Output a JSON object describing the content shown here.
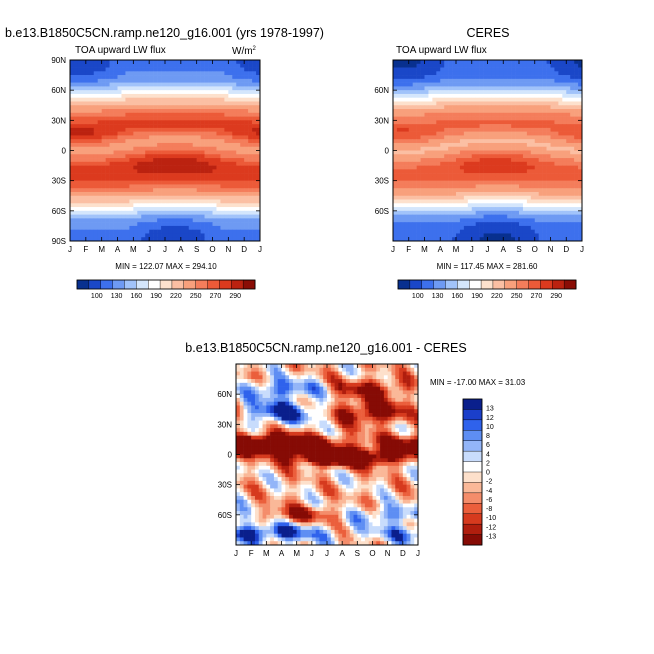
{
  "palette": {
    "main_colors": [
      "#08308f",
      "#1a47c8",
      "#3d70ed",
      "#6e9af3",
      "#a1c3fa",
      "#d4e6fc",
      "#ffffff",
      "#fde1cd",
      "#fbbfa3",
      "#f8a07c",
      "#f47d5b",
      "#ec5a38",
      "#dc3a1e",
      "#bb2210",
      "#8a0d06"
    ],
    "diff_colors": [
      "#0a1f8c",
      "#1b3fca",
      "#2f62ec",
      "#5e8ef3",
      "#93b5f8",
      "#c8dcfc",
      "#ffffff",
      "#fde0cb",
      "#fab898",
      "#f48d6b",
      "#eb5f3c",
      "#d63a1e",
      "#b01e0e",
      "#860b05"
    ]
  },
  "chart_data": [
    {
      "type": "heatmap",
      "title": "b.e13.B1850C5CN.ramp.ne120_g16.001 (yrs 1978-1997)",
      "subtitle_left": "TOA upward LW flux",
      "units_text": "W/m",
      "units_superscript": "2",
      "x_tick_labels": [
        "J",
        "F",
        "M",
        "A",
        "M",
        "J",
        "J",
        "A",
        "S",
        "O",
        "N",
        "D",
        "J"
      ],
      "y_tick_labels": [
        "90N",
        "60N",
        "30N",
        "0",
        "30S",
        "60S",
        "90S"
      ],
      "y_tick_values": [
        90,
        60,
        30,
        0,
        -30,
        -60,
        -90
      ],
      "ylim": [
        -90,
        90
      ],
      "min_max_text": "MIN = 122.07  MAX = 294.10",
      "min": 122.07,
      "max": 294.1,
      "colorbar_labels": [
        "100",
        "130",
        "160",
        "190",
        "220",
        "250",
        "270",
        "290"
      ]
    },
    {
      "type": "heatmap",
      "title": "CERES",
      "subtitle_left": "TOA upward LW flux",
      "x_tick_labels": [
        "J",
        "F",
        "M",
        "A",
        "M",
        "J",
        "J",
        "A",
        "S",
        "O",
        "N",
        "D",
        "J"
      ],
      "y_tick_labels": [
        "60N",
        "30N",
        "0",
        "30S",
        "60S"
      ],
      "y_tick_values": [
        60,
        30,
        0,
        -30,
        -60
      ],
      "ylim": [
        -90,
        90
      ],
      "min_max_text": "MIN = 117.45  MAX = 281.60",
      "min": 117.45,
      "max": 281.6,
      "colorbar_labels": [
        "100",
        "130",
        "160",
        "190",
        "220",
        "250",
        "270",
        "290"
      ]
    },
    {
      "type": "heatmap",
      "title": "b.e13.B1850C5CN.ramp.ne120_g16.001 - CERES",
      "x_tick_labels": [
        "J",
        "F",
        "M",
        "A",
        "M",
        "J",
        "J",
        "A",
        "S",
        "O",
        "N",
        "D",
        "J"
      ],
      "y_tick_labels": [
        "60N",
        "30N",
        "0",
        "30S",
        "60S"
      ],
      "y_tick_values": [
        60,
        30,
        0,
        -30,
        -60
      ],
      "ylim": [
        -90,
        90
      ],
      "min_max_text": "MIN = -17.00  MAX =  31.03",
      "min": -17.0,
      "max": 31.03,
      "colorbar_labels": [
        "13",
        "12",
        "10",
        "8",
        "6",
        "4",
        "2",
        "0",
        "-2",
        "-4",
        "-6",
        "-8",
        "-10",
        "-12",
        "-13"
      ]
    }
  ]
}
